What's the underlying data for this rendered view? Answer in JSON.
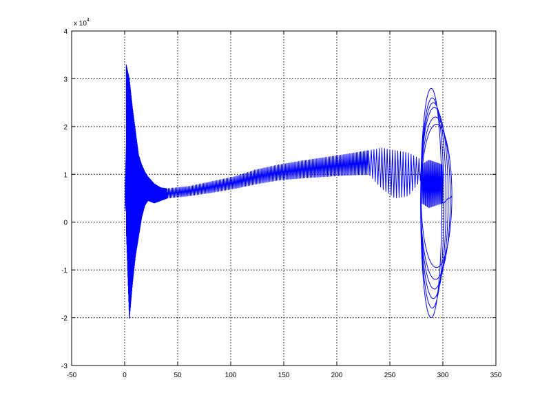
{
  "chart_data": {
    "type": "line",
    "title": "",
    "xlabel": "",
    "ylabel": "",
    "xlim": [
      -50,
      350
    ],
    "ylim": [
      -3,
      4
    ],
    "y_exponent_label": {
      "base": "x 10",
      "exp": "4"
    },
    "x_ticks": [
      -50,
      0,
      50,
      100,
      150,
      200,
      250,
      300,
      350
    ],
    "x_tick_labels": [
      "-50",
      "0",
      "50",
      "100",
      "150",
      "200",
      "250",
      "300",
      "350"
    ],
    "y_ticks": [
      -3,
      -2,
      -1,
      0,
      1,
      2,
      3,
      4
    ],
    "y_tick_labels": [
      "-3",
      "-2",
      "-1",
      "0",
      "1",
      "2",
      "3",
      "4"
    ],
    "grid": true,
    "series": [
      {
        "color": "#0000ff",
        "description": "oscillating trajectory; y in units of 1e4",
        "segments": [
          {
            "kind": "oscillation",
            "x_start": 0.5,
            "x_end": 1.5,
            "cycles": 5,
            "upper": [
              0.8,
              1.6
            ],
            "lower": [
              0.2,
              0.5
            ]
          },
          {
            "kind": "oscillation",
            "x_start": 1.5,
            "x_end": 22,
            "cycles": 75,
            "upper": [
              3.3,
              3.0,
              2.4,
              1.9,
              1.4,
              1.2,
              1.05,
              0.95
            ],
            "lower": [
              -0.2,
              -2.05,
              -1.3,
              -0.7,
              -0.3,
              0.1,
              0.35,
              0.45
            ]
          },
          {
            "kind": "oscillation",
            "x_start": 22,
            "x_end": 40,
            "cycles": 45,
            "upper": [
              0.95,
              0.8,
              0.72,
              0.7
            ],
            "lower": [
              0.45,
              0.4,
              0.45,
              0.5
            ]
          },
          {
            "kind": "oscillation",
            "x_start": 40,
            "x_end": 230,
            "cycles": 150,
            "upper": [
              0.7,
              0.75,
              0.85,
              0.95,
              1.1,
              1.2,
              1.28,
              1.35,
              1.42,
              1.5
            ],
            "lower": [
              0.5,
              0.55,
              0.62,
              0.7,
              0.8,
              0.88,
              0.92,
              0.95,
              0.98,
              1.0
            ]
          },
          {
            "kind": "oscillation",
            "x_start": 230,
            "x_end": 280,
            "cycles": 20,
            "upper": [
              1.5,
              1.55,
              1.5,
              1.45,
              1.3
            ],
            "lower": [
              1.0,
              0.7,
              0.5,
              0.55,
              0.9
            ]
          },
          {
            "kind": "loops",
            "center": [
              290,
              0.4
            ],
            "spirals": [
              {
                "cx": 289,
                "cy": 0.4,
                "rx": 10,
                "ry": 2.4
              },
              {
                "cx": 290,
                "cy": 0.4,
                "rx": 11,
                "ry": 2.2
              },
              {
                "cx": 291,
                "cy": 0.45,
                "rx": 12,
                "ry": 2.05
              },
              {
                "cx": 292,
                "cy": 0.5,
                "rx": 13,
                "ry": 1.9
              },
              {
                "cx": 293,
                "cy": 0.5,
                "rx": 14,
                "ry": 1.7
              },
              {
                "cx": 294,
                "cy": 0.55,
                "rx": 14.5,
                "ry": 1.5
              }
            ],
            "x_range": [
              278,
              307
            ],
            "y_range": [
              -2.0,
              2.82
            ]
          },
          {
            "kind": "oscillation",
            "x_start": 280,
            "x_end": 300,
            "cycles": 20,
            "upper": [
              1.2,
              1.3,
              1.25,
              1.2
            ],
            "lower": [
              0.4,
              0.3,
              0.35,
              0.4
            ]
          }
        ]
      }
    ]
  }
}
